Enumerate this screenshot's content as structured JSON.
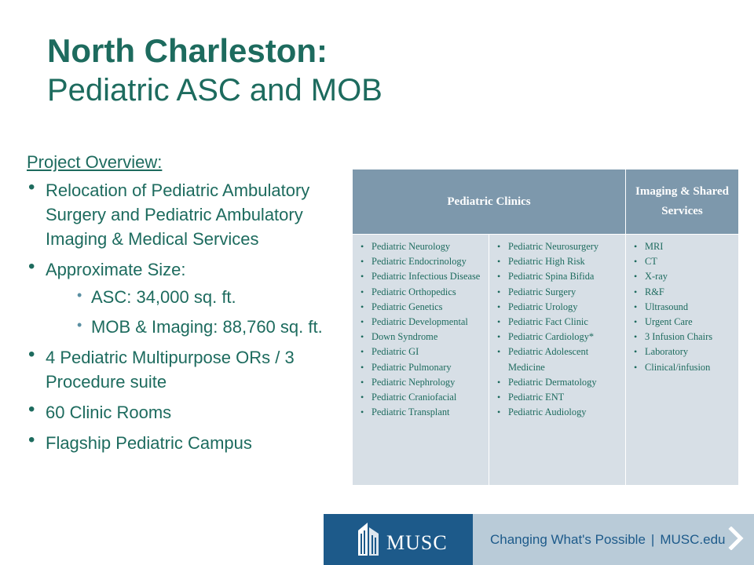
{
  "title": {
    "line1": "North Charleston:",
    "line2": "Pediatric ASC and MOB"
  },
  "overview": {
    "heading": "Project Overview:",
    "bullets": [
      "Relocation of Pediatric Ambulatory Surgery and Pediatric Ambulatory Imaging & Medical Services",
      "Approximate Size:",
      "4 Pediatric Multipurpose ORs / 3 Procedure suite",
      "60 Clinic Rooms",
      "Flagship Pediatric Campus"
    ],
    "size_sub": [
      "ASC: 34,000 sq. ft.",
      "MOB & Imaging: 88,760 sq. ft."
    ]
  },
  "table": {
    "headers": {
      "clinics": "Pediatric Clinics",
      "imaging": "Imaging & Shared Services"
    },
    "col1": [
      "Pediatric Neurology",
      "Pediatric Endocrinology",
      "Pediatric Infectious Disease",
      "Pediatric Orthopedics",
      "Pediatric Genetics",
      "Pediatric Developmental",
      "Down Syndrome",
      "Pediatric GI",
      "Pediatric Pulmonary",
      "Pediatric Nephrology",
      "Pediatric Craniofacial",
      "Pediatric Transplant"
    ],
    "col2": [
      "Pediatric Neurosurgery",
      "Pediatric High Risk",
      "Pediatric Spina Bifida",
      "Pediatric Surgery",
      "Pediatric Urology",
      "Pediatric Fact Clinic",
      "Pediatric Cardiology*",
      "Pediatric Adolescent Medicine",
      "Pediatric Dermatology",
      "Pediatric ENT",
      "Pediatric Audiology"
    ],
    "col3": [
      "MRI",
      "CT",
      "X-ray",
      "R&F",
      "Ultrasound",
      "Urgent Care",
      "3 Infusion Chairs",
      "Laboratory",
      "Clinical/infusion"
    ]
  },
  "footer": {
    "logo_text": "MUSC",
    "tagline": "Changing What's Possible",
    "separator": "|",
    "url": "MUSC.edu",
    "logo_icon": "building-icon",
    "arrow_icon": "chevron-right-icon",
    "colors": {
      "logo_bg": "#1d5a8a",
      "banner_bg": "#b9cbd8"
    }
  }
}
